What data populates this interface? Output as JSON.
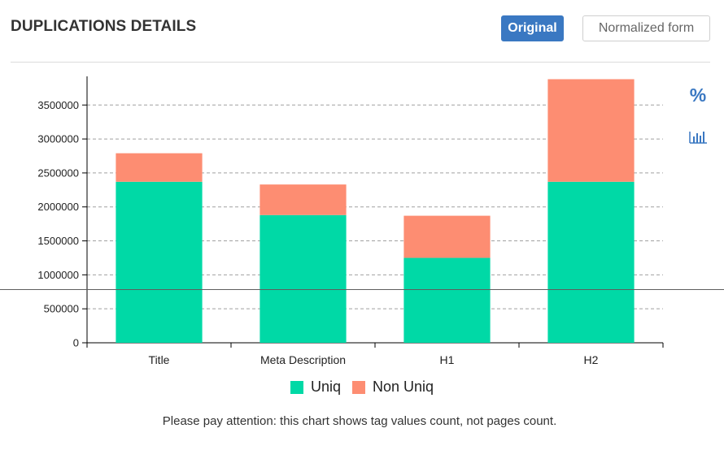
{
  "header": {
    "title": "DUPLICATIONS DETAILS",
    "original_label": "Original",
    "normalized_label": "Normalized form"
  },
  "side_controls": {
    "percent_label": "%",
    "percent_icon": "percent-icon",
    "bars_icon": "bar-chart-icon"
  },
  "colors": {
    "uniq": "#00d9a6",
    "non_uniq": "#fd8d72",
    "accent": "#3a78c2",
    "grid": "#a0a0a0"
  },
  "chart_data": {
    "type": "bar",
    "stacked": true,
    "categories": [
      "Title",
      "Meta Description",
      "H1",
      "H2"
    ],
    "series": [
      {
        "name": "Uniq",
        "values": [
          2370000,
          1880000,
          1250000,
          2370000
        ]
      },
      {
        "name": "Non Uniq",
        "values": [
          420000,
          450000,
          620000,
          1510000
        ]
      }
    ],
    "yticks": [
      0,
      500000,
      1000000,
      1500000,
      2000000,
      2500000,
      3000000,
      3500000
    ],
    "ylim": [
      0,
      3850000
    ],
    "grid": true,
    "legend_position": "bottom-center"
  },
  "footer_note": "Please pay attention: this chart shows tag values count, not pages count."
}
